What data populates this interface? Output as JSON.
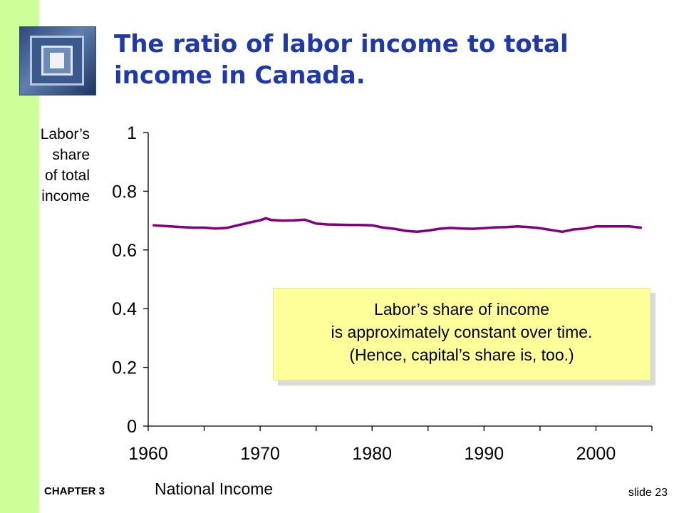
{
  "slide": {
    "title": "The ratio of labor income to total income in Canada.",
    "footer_chapter": "CHAPTER 3",
    "footer_topic": "National Income",
    "slide_number": "slide 23"
  },
  "callout": {
    "lines": [
      "Labor’s share of income",
      "is approximately constant over time.",
      "(Hence, capital’s share is, too.)"
    ]
  },
  "colors": {
    "sidebar": "#ccff99",
    "title": "#1f3aa8",
    "series_line": "#800080",
    "callout_fill": "#ffff99"
  },
  "chart_data": {
    "type": "line",
    "title": "",
    "ylabel_lines": [
      "Labor’s",
      "share",
      "of total",
      "income"
    ],
    "xlabel": "",
    "xlim": [
      1960,
      2005
    ],
    "ylim": [
      0,
      1
    ],
    "x_ticks": [
      1960,
      1970,
      1980,
      1990,
      2000
    ],
    "x_minor_ticks": [
      1965,
      1975,
      1985,
      1995,
      2005
    ],
    "y_ticks": [
      "0",
      "0.2",
      "0.4",
      "0.6",
      "0.8",
      "1"
    ],
    "grid": false,
    "legend": "none",
    "series": [
      {
        "x": [
          1960.5,
          1962,
          1963,
          1964,
          1965,
          1966,
          1967,
          1968,
          1969,
          1970,
          1970.5,
          1971,
          1972,
          1973,
          1974,
          1975,
          1976,
          1977,
          1978,
          1979,
          1980,
          1981,
          1982,
          1983,
          1984,
          1985,
          1986,
          1987,
          1988,
          1989,
          1990,
          1991,
          1992,
          1993,
          1994,
          1995,
          1996,
          1997,
          1998,
          1999,
          2000,
          2001,
          2002,
          2003,
          2004
        ],
        "values": [
          0.684,
          0.68,
          0.678,
          0.676,
          0.676,
          0.673,
          0.675,
          0.684,
          0.693,
          0.701,
          0.708,
          0.702,
          0.7,
          0.701,
          0.703,
          0.69,
          0.687,
          0.686,
          0.685,
          0.685,
          0.684,
          0.676,
          0.672,
          0.665,
          0.662,
          0.666,
          0.672,
          0.675,
          0.673,
          0.672,
          0.674,
          0.677,
          0.678,
          0.68,
          0.678,
          0.674,
          0.668,
          0.662,
          0.67,
          0.673,
          0.68,
          0.68,
          0.68,
          0.68,
          0.676
        ]
      }
    ]
  }
}
